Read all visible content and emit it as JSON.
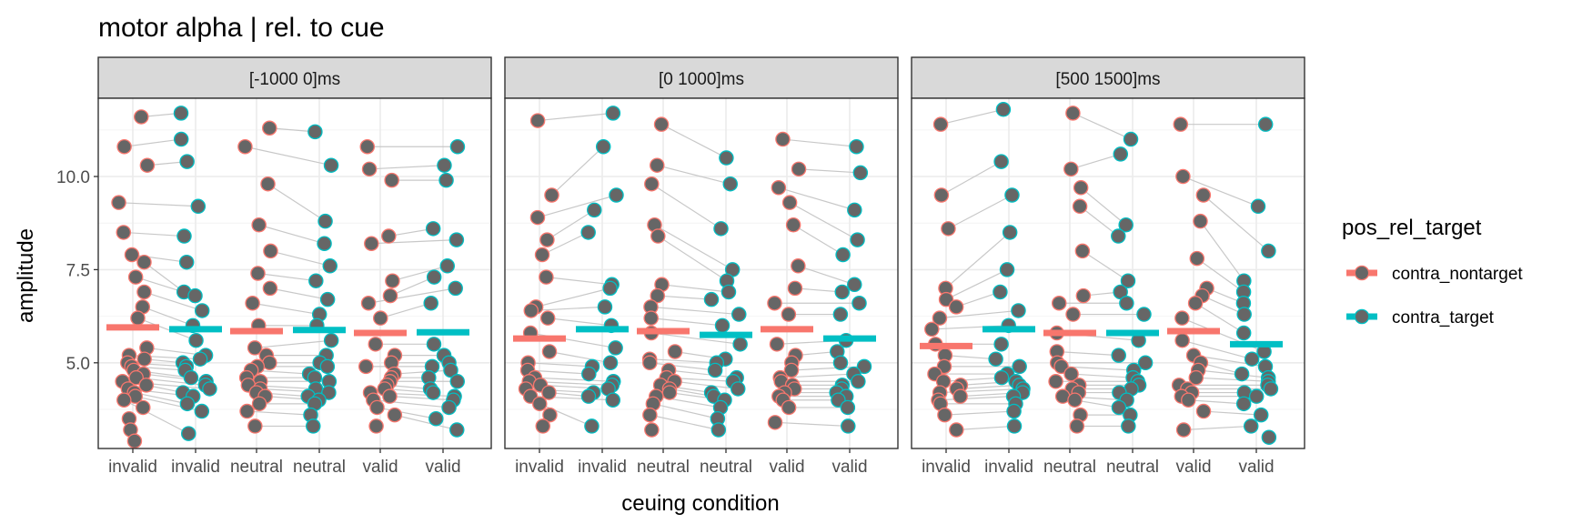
{
  "chart_data": {
    "type": "scatter",
    "title": "motor alpha | rel. to cue",
    "xlabel": "ceuing condition",
    "ylabel": "amplitude",
    "ylim": [
      2.7,
      12.1
    ],
    "yticks": [
      5.0,
      7.5,
      10.0
    ],
    "ytick_labels": [
      "5.0",
      "7.5",
      "10.0"
    ],
    "grid": true,
    "legend_position": "right",
    "categories": [
      "invalid",
      "invalid",
      "neutral",
      "neutral",
      "valid",
      "valid"
    ],
    "legend": {
      "title": "pos_rel_target",
      "entries": [
        {
          "name": "contra_nontarget",
          "color": "#F8766D"
        },
        {
          "name": "contra_target",
          "color": "#00BFC4"
        }
      ]
    },
    "colors": {
      "point_fill": "#666666",
      "connect_line": "#c8c8c8",
      "strip_fill": "#d9d9d9",
      "panel_border": "#333333",
      "grid_major": "#ebebeb"
    },
    "panels": [
      {
        "label": "[-1000 0]ms",
        "means": [
          5.95,
          5.9,
          5.85,
          5.88,
          5.8,
          5.82
        ],
        "groups": [
          [
            11.6,
            10.8,
            10.3,
            9.3,
            8.5,
            7.9,
            7.7,
            7.3,
            6.9,
            6.5,
            6.2,
            5.4,
            5.2,
            5.1,
            5.0,
            4.9,
            4.8,
            4.7,
            4.6,
            4.5,
            4.4,
            4.3,
            4.2,
            4.1,
            4.0,
            3.8,
            3.5,
            3.2,
            2.9
          ],
          [
            11.7,
            11.0,
            10.4,
            9.2,
            8.4,
            7.7,
            6.9,
            6.8,
            6.4,
            6.0,
            5.6,
            5.2,
            5.1,
            5.0,
            4.9,
            4.8,
            4.6,
            4.5,
            4.4,
            4.3,
            4.2,
            4.1,
            3.9,
            3.7,
            3.1
          ],
          [
            11.3,
            10.8,
            9.8,
            8.7,
            8.0,
            7.4,
            7.0,
            6.6,
            6.0,
            5.4,
            5.2,
            5.0,
            4.9,
            4.8,
            4.6,
            4.5,
            4.4,
            4.3,
            4.2,
            4.1,
            3.9,
            3.7,
            3.3
          ],
          [
            11.2,
            10.3,
            8.8,
            8.2,
            7.6,
            7.2,
            6.7,
            6.3,
            6.0,
            5.6,
            5.2,
            5.0,
            4.9,
            4.7,
            4.6,
            4.5,
            4.3,
            4.2,
            4.1,
            4.0,
            3.9,
            3.6,
            3.3
          ],
          [
            10.8,
            10.2,
            9.9,
            8.4,
            8.2,
            7.2,
            6.8,
            6.6,
            6.2,
            5.5,
            5.2,
            5.0,
            4.9,
            4.7,
            4.6,
            4.5,
            4.4,
            4.3,
            4.2,
            4.1,
            4.0,
            3.8,
            3.6,
            3.3
          ],
          [
            10.8,
            10.3,
            9.9,
            8.6,
            8.3,
            7.6,
            7.3,
            7.0,
            6.6,
            5.5,
            5.2,
            5.0,
            4.9,
            4.8,
            4.6,
            4.5,
            4.3,
            4.2,
            4.1,
            4.0,
            3.8,
            3.5,
            3.2
          ]
        ]
      },
      {
        "label": "[0 1000]ms",
        "means": [
          5.65,
          5.9,
          5.85,
          5.75,
          5.9,
          5.65
        ],
        "groups": [
          [
            11.5,
            9.5,
            8.9,
            8.3,
            7.9,
            7.3,
            6.5,
            6.4,
            6.2,
            5.8,
            5.3,
            5.0,
            4.8,
            4.6,
            4.5,
            4.4,
            4.3,
            4.2,
            4.1,
            3.9,
            3.6,
            3.3
          ],
          [
            11.7,
            10.8,
            9.5,
            9.1,
            8.5,
            7.1,
            7.0,
            6.5,
            6.0,
            5.4,
            5.0,
            4.9,
            4.7,
            4.5,
            4.4,
            4.3,
            4.2,
            4.1,
            4.0,
            3.3
          ],
          [
            11.4,
            10.3,
            9.8,
            8.7,
            8.4,
            7.1,
            6.8,
            6.5,
            6.2,
            5.8,
            5.3,
            5.1,
            5.0,
            4.8,
            4.6,
            4.5,
            4.4,
            4.3,
            4.2,
            4.1,
            3.9,
            3.6,
            3.2
          ],
          [
            10.5,
            9.8,
            8.6,
            7.5,
            7.2,
            6.9,
            6.7,
            6.3,
            6.0,
            5.5,
            5.1,
            5.0,
            4.8,
            4.6,
            4.5,
            4.3,
            4.2,
            4.1,
            4.0,
            3.8,
            3.5,
            3.2
          ],
          [
            11.0,
            10.2,
            9.7,
            9.3,
            8.7,
            7.6,
            7.0,
            6.6,
            6.3,
            5.5,
            5.2,
            5.0,
            4.8,
            4.6,
            4.5,
            4.4,
            4.3,
            4.2,
            4.1,
            4.0,
            3.8,
            3.4
          ],
          [
            10.8,
            10.1,
            9.1,
            8.3,
            7.9,
            7.1,
            6.9,
            6.6,
            6.3,
            5.6,
            5.3,
            5.0,
            4.9,
            4.7,
            4.5,
            4.4,
            4.3,
            4.2,
            4.1,
            4.0,
            3.8,
            3.3
          ]
        ]
      },
      {
        "label": "[500 1500]ms",
        "means": [
          5.45,
          5.9,
          5.8,
          5.8,
          5.85,
          5.5
        ],
        "groups": [
          [
            11.4,
            9.5,
            8.6,
            7.0,
            6.7,
            6.5,
            6.2,
            5.9,
            5.5,
            5.2,
            4.9,
            4.7,
            4.5,
            4.4,
            4.3,
            4.2,
            4.1,
            4.0,
            3.9,
            3.6,
            3.2
          ],
          [
            11.8,
            10.4,
            9.5,
            8.5,
            7.5,
            6.9,
            6.4,
            6.0,
            5.5,
            5.1,
            4.9,
            4.7,
            4.6,
            4.5,
            4.4,
            4.3,
            4.2,
            4.1,
            3.9,
            3.7,
            3.3
          ],
          [
            11.7,
            10.2,
            9.7,
            9.2,
            8.0,
            6.8,
            6.6,
            6.3,
            5.8,
            5.3,
            5.0,
            4.9,
            4.7,
            4.5,
            4.4,
            4.3,
            4.2,
            4.1,
            4.0,
            3.6,
            3.3
          ],
          [
            11.0,
            10.6,
            8.7,
            8.4,
            7.2,
            6.9,
            6.6,
            6.3,
            5.6,
            5.2,
            5.0,
            4.8,
            4.6,
            4.5,
            4.4,
            4.3,
            4.2,
            4.0,
            3.8,
            3.6,
            3.3
          ],
          [
            11.4,
            10.0,
            9.5,
            8.8,
            7.8,
            7.0,
            6.8,
            6.6,
            6.2,
            5.6,
            5.2,
            5.0,
            4.8,
            4.6,
            4.4,
            4.3,
            4.2,
            4.1,
            4.0,
            3.7,
            3.2
          ],
          [
            11.4,
            9.2,
            8.0,
            7.2,
            6.9,
            6.6,
            6.3,
            5.8,
            5.3,
            5.1,
            4.9,
            4.7,
            4.6,
            4.5,
            4.4,
            4.3,
            4.2,
            4.1,
            3.9,
            3.6,
            3.3,
            3.0
          ]
        ]
      }
    ]
  }
}
